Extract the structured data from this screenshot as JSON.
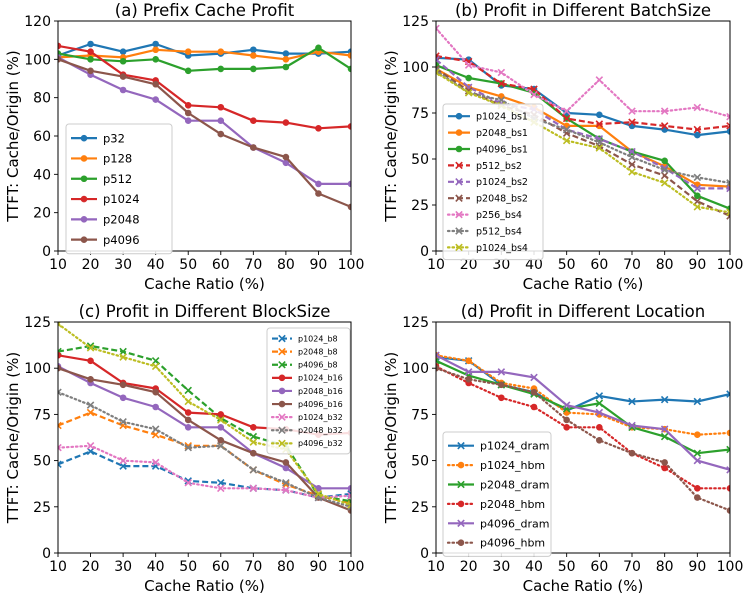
{
  "chart_data": [
    {
      "type": "line",
      "title": "(a) Prefix Cache Profit",
      "xlabel": "Cache Ratio (%)",
      "ylabel": "TTFT: Cache/Origin (%)",
      "x": [
        10,
        20,
        30,
        40,
        50,
        60,
        70,
        80,
        90,
        100
      ],
      "xticks": [
        "10",
        "20",
        "30",
        "40",
        "50",
        "60",
        "70",
        "80",
        "90",
        "100"
      ],
      "ylim": [
        0,
        120
      ],
      "yticks": [
        "0",
        "20",
        "40",
        "60",
        "80",
        "100",
        "120"
      ],
      "legend": "center-left",
      "series": [
        {
          "name": "p32",
          "color": "#1f77b4",
          "style": "solid",
          "marker": "circle",
          "values": [
            102,
            108,
            104,
            108,
            102,
            103,
            105,
            103,
            103,
            104
          ]
        },
        {
          "name": "p128",
          "color": "#ff7f0e",
          "style": "solid",
          "marker": "circle",
          "values": [
            101,
            102,
            101,
            105,
            104,
            104,
            102,
            100,
            104,
            102
          ]
        },
        {
          "name": "p512",
          "color": "#2ca02c",
          "style": "solid",
          "marker": "circle",
          "values": [
            103,
            100,
            99,
            100,
            94,
            95,
            95,
            96,
            106,
            95
          ]
        },
        {
          "name": "p1024",
          "color": "#d62728",
          "style": "solid",
          "marker": "circle",
          "values": [
            107,
            104,
            92,
            89,
            76,
            75,
            68,
            67,
            64,
            65
          ]
        },
        {
          "name": "p2048",
          "color": "#9467bd",
          "style": "solid",
          "marker": "circle",
          "values": [
            101,
            92,
            84,
            79,
            68,
            68,
            54,
            46,
            35,
            35
          ]
        },
        {
          "name": "p4096",
          "color": "#8c564b",
          "style": "solid",
          "marker": "circle",
          "values": [
            100,
            94,
            91,
            87,
            72,
            61,
            54,
            49,
            30,
            23
          ]
        }
      ]
    },
    {
      "type": "line",
      "title": "(b) Profit in Different BatchSize",
      "xlabel": "Cache Ratio (%)",
      "ylabel": "TTFT: Cache/Origin (%)",
      "x": [
        10,
        20,
        30,
        40,
        50,
        60,
        70,
        80,
        90,
        100
      ],
      "xticks": [
        "10",
        "20",
        "30",
        "40",
        "50",
        "60",
        "70",
        "80",
        "90",
        "100"
      ],
      "ylim": [
        0,
        125
      ],
      "yticks": [
        "0",
        "25",
        "50",
        "75",
        "100",
        "125"
      ],
      "legend": "lower-left",
      "series": [
        {
          "name": "p1024_bs1",
          "color": "#1f77b4",
          "style": "solid",
          "marker": "circle",
          "values": [
            105,
            104,
            90,
            88,
            75,
            74,
            68,
            66,
            63,
            65
          ]
        },
        {
          "name": "p2048_bs1",
          "color": "#ff7f0e",
          "style": "solid",
          "marker": "circle",
          "values": [
            99,
            89,
            84,
            78,
            68,
            68,
            54,
            46,
            36,
            35
          ]
        },
        {
          "name": "p4096_bs1",
          "color": "#2ca02c",
          "style": "solid",
          "marker": "circle",
          "values": [
            101,
            94,
            91,
            86,
            72,
            61,
            54,
            49,
            30,
            23
          ]
        },
        {
          "name": "p512_bs2",
          "color": "#d62728",
          "style": "dashed",
          "marker": "x",
          "values": [
            106,
            103,
            91,
            88,
            72,
            69,
            70,
            68,
            66,
            68
          ]
        },
        {
          "name": "p1024_bs2",
          "color": "#9467bd",
          "style": "dashed",
          "marker": "x",
          "values": [
            104,
            89,
            80,
            77,
            66,
            61,
            54,
            45,
            34,
            34
          ]
        },
        {
          "name": "p2048_bs2",
          "color": "#8c564b",
          "style": "dashed",
          "marker": "x",
          "values": [
            99,
            87,
            79,
            74,
            64,
            57,
            47,
            41,
            27,
            19
          ]
        },
        {
          "name": "p256_bs4",
          "color": "#e377c2",
          "style": "dotted",
          "marker": "x",
          "values": [
            121,
            101,
            97,
            85,
            76,
            93,
            76,
            76,
            78,
            73
          ]
        },
        {
          "name": "p512_bs4",
          "color": "#7f7f7f",
          "style": "dotted",
          "marker": "x",
          "values": [
            98,
            86,
            82,
            72,
            66,
            59,
            51,
            44,
            40,
            37
          ]
        },
        {
          "name": "p1024_bs4",
          "color": "#bcbd22",
          "style": "dotted",
          "marker": "x",
          "values": [
            97,
            86,
            79,
            70,
            60,
            56,
            43,
            37,
            24,
            21
          ]
        }
      ]
    },
    {
      "type": "line",
      "title": "(c) Profit in Different BlockSize",
      "xlabel": "Cache Ratio (%)",
      "ylabel": "TTFT: Cache/Origin (%)",
      "x": [
        10,
        20,
        30,
        40,
        50,
        60,
        70,
        80,
        90,
        100
      ],
      "xticks": [
        "10",
        "20",
        "30",
        "40",
        "50",
        "60",
        "70",
        "80",
        "90",
        "100"
      ],
      "ylim": [
        0,
        125
      ],
      "yticks": [
        "0",
        "25",
        "50",
        "75",
        "100",
        "125"
      ],
      "legend": "top-right",
      "series": [
        {
          "name": "p1024_b8",
          "color": "#1f77b4",
          "style": "dashed",
          "marker": "x",
          "values": [
            48,
            55,
            47,
            47,
            39,
            38,
            35,
            34,
            30,
            32
          ]
        },
        {
          "name": "p2048_b8",
          "color": "#ff7f0e",
          "style": "dashed",
          "marker": "x",
          "values": [
            69,
            76,
            69,
            64,
            58,
            58,
            45,
            37,
            31,
            27
          ]
        },
        {
          "name": "p4096_b8",
          "color": "#2ca02c",
          "style": "dashed",
          "marker": "x",
          "values": [
            109,
            112,
            109,
            104,
            88,
            73,
            63,
            58,
            31,
            28
          ]
        },
        {
          "name": "p1024_b16",
          "color": "#d62728",
          "style": "solid",
          "marker": "circle",
          "values": [
            107,
            104,
            92,
            89,
            76,
            75,
            68,
            67,
            64,
            65
          ]
        },
        {
          "name": "p2048_b16",
          "color": "#9467bd",
          "style": "solid",
          "marker": "circle",
          "values": [
            101,
            92,
            84,
            79,
            68,
            68,
            54,
            46,
            35,
            35
          ]
        },
        {
          "name": "p4096_b16",
          "color": "#8c564b",
          "style": "solid",
          "marker": "circle",
          "values": [
            100,
            94,
            91,
            87,
            72,
            61,
            54,
            49,
            30,
            23
          ]
        },
        {
          "name": "p1024_b32",
          "color": "#e377c2",
          "style": "dotted",
          "marker": "x",
          "values": [
            57,
            58,
            50,
            49,
            38,
            35,
            35,
            34,
            30,
            31
          ]
        },
        {
          "name": "p2048_b32",
          "color": "#7f7f7f",
          "style": "dotted",
          "marker": "x",
          "values": [
            87,
            80,
            71,
            67,
            57,
            58,
            45,
            38,
            30,
            25
          ]
        },
        {
          "name": "p4096_b32",
          "color": "#bcbd22",
          "style": "dotted",
          "marker": "x",
          "values": [
            124,
            111,
            106,
            101,
            82,
            72,
            60,
            56,
            32,
            26
          ]
        }
      ]
    },
    {
      "type": "line",
      "title": "(d) Profit in Different Location",
      "xlabel": "Cache Ratio (%)",
      "ylabel": "TTFT: Cache/Origin (%)",
      "x": [
        10,
        20,
        30,
        40,
        50,
        60,
        70,
        80,
        90,
        100
      ],
      "xticks": [
        "10",
        "20",
        "30",
        "40",
        "50",
        "60",
        "70",
        "80",
        "90",
        "100"
      ],
      "ylim": [
        0,
        125
      ],
      "yticks": [
        "0",
        "25",
        "50",
        "75",
        "100",
        "125"
      ],
      "legend": "lower-left",
      "series": [
        {
          "name": "p1024_dram",
          "color": "#1f77b4",
          "style": "solid",
          "marker": "x",
          "values": [
            106,
            104,
            91,
            87,
            77,
            85,
            82,
            83,
            82,
            86
          ]
        },
        {
          "name": "p1024_hbm",
          "color": "#ff7f0e",
          "style": "dotted",
          "marker": "circle",
          "values": [
            107,
            104,
            92,
            89,
            76,
            75,
            68,
            67,
            64,
            65
          ]
        },
        {
          "name": "p2048_dram",
          "color": "#2ca02c",
          "style": "solid",
          "marker": "x",
          "values": [
            104,
            96,
            91,
            86,
            78,
            81,
            68,
            63,
            54,
            56
          ]
        },
        {
          "name": "p2048_hbm",
          "color": "#d62728",
          "style": "dotted",
          "marker": "circle",
          "values": [
            101,
            92,
            84,
            79,
            68,
            68,
            54,
            46,
            35,
            35
          ]
        },
        {
          "name": "p4096_dram",
          "color": "#9467bd",
          "style": "solid",
          "marker": "x",
          "values": [
            107,
            98,
            98,
            95,
            80,
            76,
            69,
            67,
            50,
            45
          ]
        },
        {
          "name": "p4096_hbm",
          "color": "#8c564b",
          "style": "dotted",
          "marker": "circle",
          "values": [
            100,
            94,
            91,
            87,
            72,
            61,
            54,
            49,
            30,
            23
          ]
        }
      ]
    }
  ]
}
